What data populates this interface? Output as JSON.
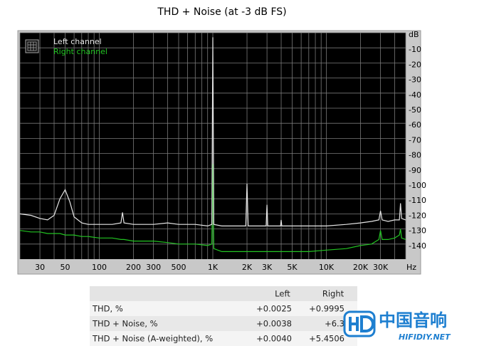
{
  "chart_data": {
    "type": "line",
    "title": "THD + Noise (at -3 dB FS)",
    "x_scale": "log",
    "xlim": [
      20,
      50000
    ],
    "ylim": [
      -150,
      0
    ],
    "grid": true,
    "xlabel": "Hz",
    "xticks": [
      30,
      50,
      100,
      200,
      300,
      500,
      {
        "value": 1000,
        "label": "1K"
      },
      {
        "value": 2000,
        "label": "2K"
      },
      {
        "value": 3000,
        "label": "3K"
      },
      {
        "value": 5000,
        "label": "5K"
      },
      {
        "value": 10000,
        "label": "10K"
      },
      {
        "value": 20000,
        "label": "20K"
      },
      {
        "value": 30000,
        "label": "30K"
      }
    ],
    "xgrid": [
      20,
      30,
      40,
      50,
      60,
      70,
      80,
      90,
      100,
      200,
      300,
      400,
      500,
      600,
      700,
      800,
      900,
      1000,
      2000,
      3000,
      4000,
      5000,
      6000,
      7000,
      8000,
      9000,
      10000,
      20000,
      30000,
      40000,
      50000
    ],
    "yticks": [
      {
        "value": 0,
        "label": "dB"
      },
      -10,
      -20,
      -30,
      -40,
      -50,
      -60,
      -70,
      -80,
      -90,
      -100,
      -110,
      -120,
      -130,
      -140
    ],
    "legend": "top-left",
    "x": [
      20,
      25,
      30,
      35,
      40,
      45,
      50,
      55,
      60,
      70,
      80,
      100,
      130,
      155,
      160,
      165,
      200,
      300,
      400,
      500,
      700,
      900,
      980,
      1000,
      1020,
      1200,
      1500,
      1950,
      2000,
      2050,
      2950,
      3000,
      3050,
      3950,
      4000,
      4050,
      5000,
      7000,
      10000,
      15000,
      20000,
      25000,
      29000,
      30000,
      31000,
      35000,
      40000,
      44000,
      45000,
      46000,
      50000
    ],
    "series": [
      {
        "name": "Left channel",
        "color": "#e6e6e6",
        "values": [
          -120,
          -121,
          -123,
          -124,
          -121,
          -110,
          -104,
          -112,
          -122,
          -126,
          -127,
          -127,
          -127,
          -126,
          -119,
          -126,
          -127,
          -127,
          -126,
          -127,
          -127,
          -128,
          -127,
          -3,
          -127,
          -128,
          -128,
          -128,
          -100,
          -128,
          -128,
          -114,
          -128,
          -128,
          -124,
          -128,
          -128,
          -128,
          -128,
          -127,
          -126,
          -125,
          -124,
          -118,
          -124,
          -125,
          -124,
          -124,
          -113,
          -123,
          -124
        ]
      },
      {
        "name": "Right channel",
        "color": "#22c322",
        "values": [
          -131,
          -132,
          -132,
          -133,
          -133,
          -133,
          -134,
          -134,
          -134,
          -135,
          -135,
          -136,
          -136,
          -137,
          -137,
          -137,
          -138,
          -138,
          -139,
          -140,
          -140,
          -141,
          -140,
          -87,
          -143,
          -145,
          -145,
          -145,
          -145,
          -145,
          -145,
          -145,
          -145,
          -145,
          -145,
          -145,
          -145,
          -145,
          -144,
          -143,
          -141,
          -140,
          -137,
          -131,
          -137,
          -137,
          -136,
          -134,
          -130,
          -136,
          -137
        ]
      }
    ]
  },
  "table": {
    "header": [
      "Left",
      "Right"
    ],
    "rows": [
      [
        "THD, %",
        "+0.0025",
        "+0.9995"
      ],
      [
        "THD + Noise, %",
        "+0.0038",
        "+6.3"
      ],
      [
        "THD + Noise (A-weighted), %",
        "+0.0040",
        "+5.4506"
      ]
    ]
  },
  "logo": {
    "title": "中国音响",
    "subtitle": "HIFIDIY.NET"
  }
}
